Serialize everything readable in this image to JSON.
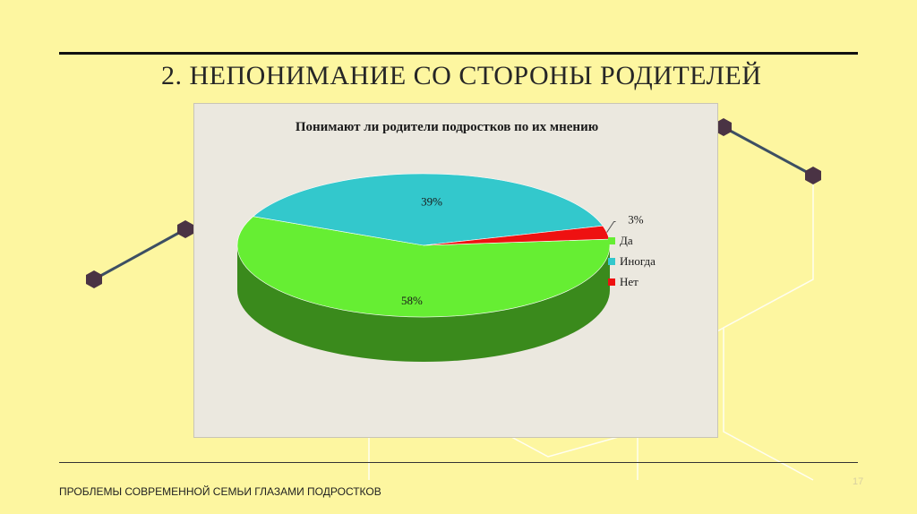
{
  "slide": {
    "title": "2. НЕПОНИМАНИЕ СО СТОРОНЫ РОДИТЕЛЕЙ",
    "footer": "ПРОБЛЕМЫ СОВРЕМЕННОЙ СЕМЬИ ГЛАЗАМИ ПОДРОСТКОВ",
    "page_number": "17"
  },
  "colors": {
    "background": "#fdf6a0",
    "chart_background": "#ebe8df",
    "deco_line": "#3d4f63",
    "deco_node": "#4a3344"
  },
  "chart_data": {
    "type": "pie",
    "title": "Понимают ли родители подростков по их мнению",
    "categories": [
      "Да",
      "Иногда",
      "Нет"
    ],
    "values": [
      58,
      39,
      3
    ],
    "labels": [
      "58%",
      "39%",
      "3%"
    ],
    "colors": [
      "#66ee33",
      "#33c8cc",
      "#ee1111"
    ],
    "side_colors": [
      "#3a8a1c",
      "#1e7a7c",
      "#8a0a0a"
    ],
    "legend_position": "right",
    "three_d": true
  }
}
